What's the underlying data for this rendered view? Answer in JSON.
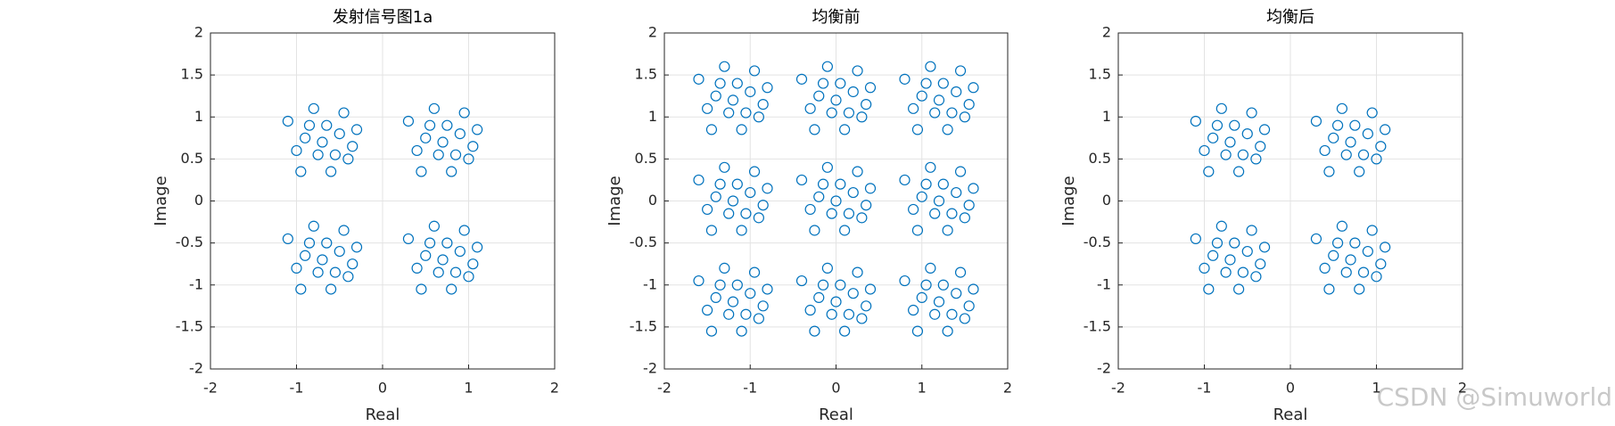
{
  "chart_data": [
    {
      "type": "scatter",
      "title": "发射信号图1a",
      "xlabel": "Real",
      "ylabel": "Image",
      "color": "#0072bd",
      "grid": true,
      "xlim": [
        -2,
        2
      ],
      "ylim": [
        -2,
        2
      ],
      "xticks": [
        -2,
        -1,
        0,
        1,
        2
      ],
      "yticks": [
        -2,
        -1.5,
        -1,
        -0.5,
        0,
        0.5,
        1,
        1.5,
        2
      ],
      "x": [
        -0.7,
        -0.5,
        -0.85,
        -0.4,
        -1,
        -0.6,
        -0.8,
        -0.3,
        -1.1,
        -0.45,
        -0.95,
        -0.65,
        -0.75,
        -0.35,
        -0.9,
        -0.55,
        0.7,
        0.9,
        0.55,
        1,
        0.4,
        0.8,
        0.6,
        1.1,
        0.3,
        0.95,
        0.45,
        0.75,
        0.65,
        1.05,
        0.5,
        0.85,
        -0.7,
        -0.5,
        -0.85,
        -0.4,
        -1,
        -0.6,
        -0.8,
        -0.3,
        -1.1,
        -0.45,
        -0.95,
        -0.65,
        -0.75,
        -0.35,
        -0.9,
        -0.55,
        0.7,
        0.9,
        0.55,
        1,
        0.4,
        0.8,
        0.6,
        1.1,
        0.3,
        0.95,
        0.45,
        0.75,
        0.65,
        1.05,
        0.5,
        0.85
      ],
      "y": [
        0.7,
        0.8,
        0.9,
        0.5,
        0.6,
        0.35,
        1.1,
        0.85,
        0.95,
        1.05,
        0.35,
        0.9,
        0.55,
        0.65,
        0.75,
        0.55,
        0.7,
        0.8,
        0.9,
        0.5,
        0.6,
        0.35,
        1.1,
        0.85,
        0.95,
        1.05,
        0.35,
        0.9,
        0.55,
        0.65,
        0.75,
        0.55,
        -0.7,
        -0.6,
        -0.5,
        -0.9,
        -0.8,
        -1.05,
        -0.3,
        -0.55,
        -0.45,
        -0.35,
        -1.05,
        -0.5,
        -0.85,
        -0.75,
        -0.65,
        -0.85,
        -0.7,
        -0.6,
        -0.5,
        -0.9,
        -0.8,
        -1.05,
        -0.3,
        -0.55,
        -0.45,
        -0.35,
        -1.05,
        -0.5,
        -0.85,
        -0.75,
        -0.65,
        -0.85
      ]
    },
    {
      "type": "scatter",
      "title": "均衡前",
      "xlabel": "Real",
      "ylabel": "Image",
      "color": "#0072bd",
      "grid": true,
      "xlim": [
        -2,
        2
      ],
      "ylim": [
        -2,
        2
      ],
      "xticks": [
        -2,
        -1,
        0,
        1,
        2
      ],
      "yticks": [
        -2,
        -1.5,
        -1,
        -0.5,
        0,
        0.5,
        1,
        1.5,
        2
      ],
      "x": [
        -1.2,
        -1,
        -1.35,
        -0.9,
        -1.5,
        -1.1,
        -1.3,
        -0.8,
        -1.6,
        -0.95,
        -1.45,
        -1.15,
        -1.25,
        -0.85,
        -1.4,
        -1.05,
        0,
        0.2,
        -0.15,
        0.3,
        -0.3,
        0.1,
        -0.1,
        0.4,
        -0.4,
        0.25,
        -0.25,
        0.05,
        -0.05,
        0.35,
        -0.2,
        0.15,
        1.2,
        1.4,
        1.05,
        1.5,
        0.9,
        1.3,
        1.1,
        1.6,
        0.8,
        1.45,
        0.95,
        1.25,
        1.15,
        1.55,
        1,
        1.35,
        -1.2,
        -1,
        -1.35,
        -0.9,
        -1.5,
        -1.1,
        -1.3,
        -0.8,
        -1.6,
        -0.95,
        -1.45,
        -1.15,
        -1.25,
        -0.85,
        -1.4,
        -1.05,
        0,
        0.2,
        -0.15,
        0.3,
        -0.3,
        0.1,
        -0.1,
        0.4,
        -0.4,
        0.25,
        -0.25,
        0.05,
        -0.05,
        0.35,
        -0.2,
        0.15,
        1.2,
        1.4,
        1.05,
        1.5,
        0.9,
        1.3,
        1.1,
        1.6,
        0.8,
        1.45,
        0.95,
        1.25,
        1.15,
        1.55,
        1,
        1.35,
        -1.2,
        -1,
        -1.35,
        -0.9,
        -1.5,
        -1.1,
        -1.3,
        -0.8,
        -1.6,
        -0.95,
        -1.45,
        -1.15,
        -1.25,
        -0.85,
        -1.4,
        -1.05,
        0,
        0.2,
        -0.15,
        0.3,
        -0.3,
        0.1,
        -0.1,
        0.4,
        -0.4,
        0.25,
        -0.25,
        0.05,
        -0.05,
        0.35,
        -0.2,
        0.15,
        1.2,
        1.4,
        1.05,
        1.5,
        0.9,
        1.3,
        1.1,
        1.6,
        0.8,
        1.45,
        0.95,
        1.25,
        1.15,
        1.55,
        1,
        1.35
      ],
      "y": [
        1.2,
        1.3,
        1.4,
        1,
        1.1,
        0.85,
        1.6,
        1.35,
        1.45,
        1.55,
        0.85,
        1.4,
        1.05,
        1.15,
        1.25,
        1.05,
        1.2,
        1.3,
        1.4,
        1,
        1.1,
        0.85,
        1.6,
        1.35,
        1.45,
        1.55,
        0.85,
        1.4,
        1.05,
        1.15,
        1.25,
        1.05,
        1.2,
        1.3,
        1.4,
        1,
        1.1,
        0.85,
        1.6,
        1.35,
        1.45,
        1.55,
        0.85,
        1.4,
        1.05,
        1.15,
        1.25,
        1.05,
        0,
        0.1,
        0.2,
        -0.2,
        -0.1,
        -0.35,
        0.4,
        0.15,
        0.25,
        0.35,
        -0.35,
        0.2,
        -0.15,
        -0.05,
        0.05,
        -0.15,
        0,
        0.1,
        0.2,
        -0.2,
        -0.1,
        -0.35,
        0.4,
        0.15,
        0.25,
        0.35,
        -0.35,
        0.2,
        -0.15,
        -0.05,
        0.05,
        -0.15,
        0,
        0.1,
        0.2,
        -0.2,
        -0.1,
        -0.35,
        0.4,
        0.15,
        0.25,
        0.35,
        -0.35,
        0.2,
        -0.15,
        -0.05,
        0.05,
        -0.15,
        -1.2,
        -1.1,
        -1,
        -1.4,
        -1.3,
        -1.55,
        -0.8,
        -1.05,
        -0.95,
        -0.85,
        -1.55,
        -1,
        -1.35,
        -1.25,
        -1.15,
        -1.35,
        -1.2,
        -1.1,
        -1,
        -1.4,
        -1.3,
        -1.55,
        -0.8,
        -1.05,
        -0.95,
        -0.85,
        -1.55,
        -1,
        -1.35,
        -1.25,
        -1.15,
        -1.35,
        -1.2,
        -1.1,
        -1,
        -1.4,
        -1.3,
        -1.55,
        -0.8,
        -1.05,
        -0.95,
        -0.85,
        -1.55,
        -1,
        -1.35,
        -1.25,
        -1.15,
        -1.35
      ]
    },
    {
      "type": "scatter",
      "title": "均衡后",
      "xlabel": "Real",
      "ylabel": "Image",
      "color": "#0072bd",
      "grid": true,
      "xlim": [
        -2,
        2
      ],
      "ylim": [
        -2,
        2
      ],
      "xticks": [
        -2,
        -1,
        0,
        1,
        2
      ],
      "yticks": [
        -2,
        -1.5,
        -1,
        -0.5,
        0,
        0.5,
        1,
        1.5,
        2
      ],
      "x": [
        -0.7,
        -0.5,
        -0.85,
        -0.4,
        -1,
        -0.6,
        -0.8,
        -0.3,
        -1.1,
        -0.45,
        -0.95,
        -0.65,
        -0.75,
        -0.35,
        -0.9,
        -0.55,
        0.7,
        0.9,
        0.55,
        1,
        0.4,
        0.8,
        0.6,
        1.1,
        0.3,
        0.95,
        0.45,
        0.75,
        0.65,
        1.05,
        0.5,
        0.85,
        -0.7,
        -0.5,
        -0.85,
        -0.4,
        -1,
        -0.6,
        -0.8,
        -0.3,
        -1.1,
        -0.45,
        -0.95,
        -0.65,
        -0.75,
        -0.35,
        -0.9,
        -0.55,
        0.7,
        0.9,
        0.55,
        1,
        0.4,
        0.8,
        0.6,
        1.1,
        0.3,
        0.95,
        0.45,
        0.75,
        0.65,
        1.05,
        0.5,
        0.85
      ],
      "y": [
        0.7,
        0.8,
        0.9,
        0.5,
        0.6,
        0.35,
        1.1,
        0.85,
        0.95,
        1.05,
        0.35,
        0.9,
        0.55,
        0.65,
        0.75,
        0.55,
        0.7,
        0.8,
        0.9,
        0.5,
        0.6,
        0.35,
        1.1,
        0.85,
        0.95,
        1.05,
        0.35,
        0.9,
        0.55,
        0.65,
        0.75,
        0.55,
        -0.7,
        -0.6,
        -0.5,
        -0.9,
        -0.8,
        -1.05,
        -0.3,
        -0.55,
        -0.45,
        -0.35,
        -1.05,
        -0.5,
        -0.85,
        -0.75,
        -0.65,
        -0.85,
        -0.7,
        -0.6,
        -0.5,
        -0.9,
        -0.8,
        -1.05,
        -0.3,
        -0.55,
        -0.45,
        -0.35,
        -1.05,
        -0.5,
        -0.85,
        -0.75,
        -0.65,
        -0.85
      ]
    }
  ],
  "watermark": "CSDN @Simuworld"
}
